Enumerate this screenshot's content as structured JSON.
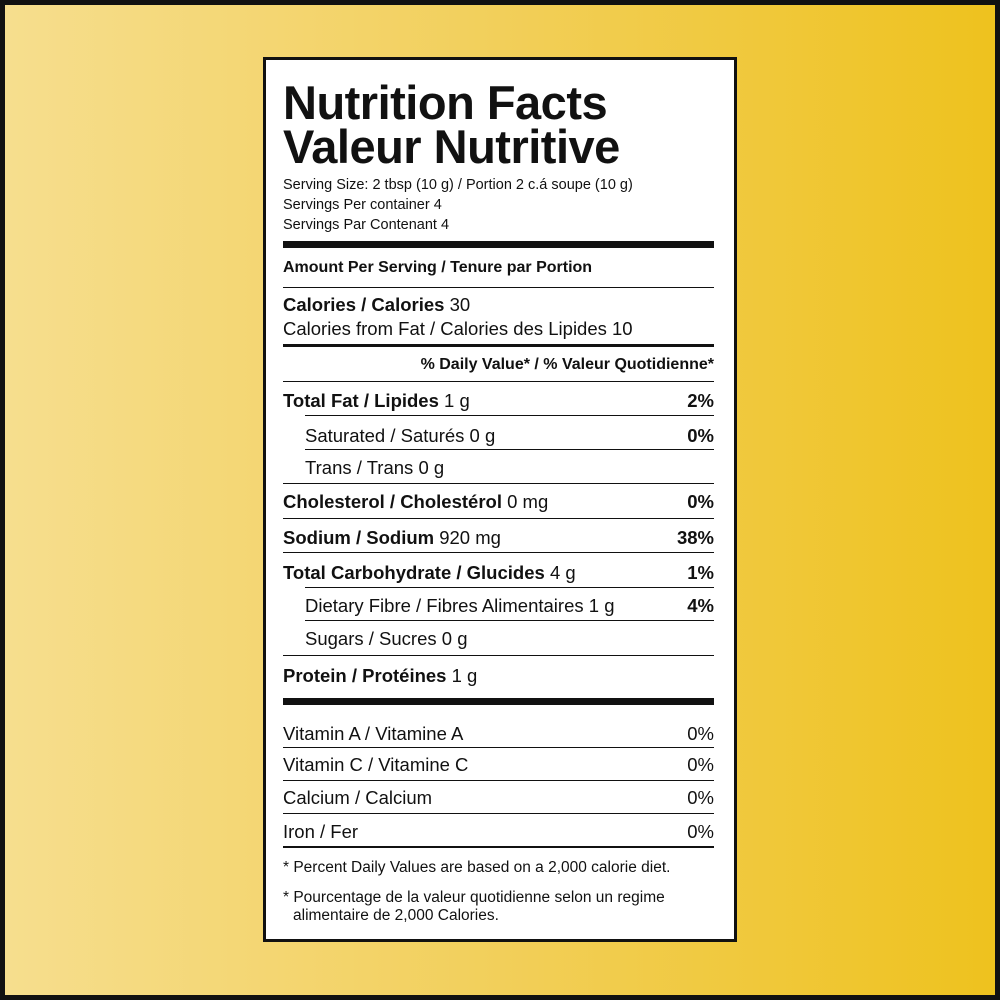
{
  "title": [
    "Nutrition Facts",
    "Valeur Nutritive"
  ],
  "serving": [
    "Serving Size: 2 tbsp (10 g) / Portion 2 c.á soupe (10 g)",
    "Servings Per container 4",
    "Servings Par Contenant 4"
  ],
  "amount_per_serving": "Amount Per Serving / Tenure par Portion",
  "calories": {
    "label": "Calories / Calories",
    "value": "30"
  },
  "calories_from_fat": "Calories from Fat / Calories des Lipides 10",
  "daily_value_heading": "% Daily Value* / % Valeur Quotidienne*",
  "nutrients": [
    {
      "label": "Total Fat / Lipides",
      "amount": "1 g",
      "dv": "2%"
    },
    {
      "label": "Saturated / Saturés",
      "amount": "0 g",
      "dv": "0%"
    },
    {
      "label": "Trans / Trans",
      "amount": "0 g"
    },
    {
      "label": "Cholesterol / Cholestérol",
      "amount": "0 mg",
      "dv": "0%"
    },
    {
      "label": "Sodium / Sodium",
      "amount": "920 mg",
      "dv": "38%"
    },
    {
      "label": "Total Carbohydrate / Glucides",
      "amount": "4 g",
      "dv": "1%"
    },
    {
      "label": "Dietary Fibre / Fibres Alimentaires",
      "amount": "1 g",
      "dv": "4%"
    },
    {
      "label": "Sugars / Sucres",
      "amount": "0 g"
    },
    {
      "label": "Protein / Protéines",
      "amount": "1 g"
    }
  ],
  "vitamins": [
    {
      "label": "Vitamin A / Vitamine A",
      "dv": "0%"
    },
    {
      "label": "Vitamin C / Vitamine C",
      "dv": "0%"
    },
    {
      "label": "Calcium / Calcium",
      "dv": "0%"
    },
    {
      "label": "Iron / Fer",
      "dv": "0%"
    }
  ],
  "footnotes": [
    "* Percent Daily Values are based on a 2,000 calorie diet.",
    "* Pourcentage de la valeur quotidienne selon un regime alimentaire de 2,000 Calories."
  ]
}
